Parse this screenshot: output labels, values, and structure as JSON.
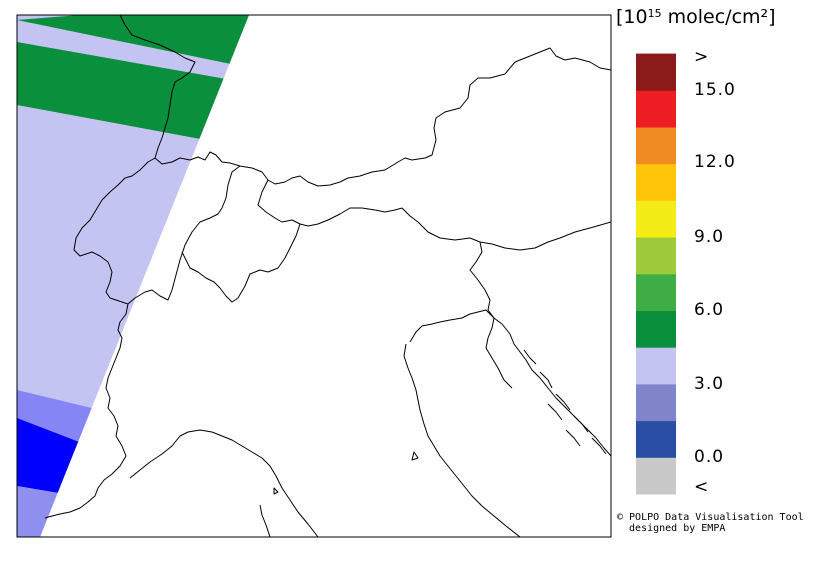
{
  "legend": {
    "unit_prefix": "[10",
    "unit_exponent": "15",
    "unit_suffix": " molec/cm²]",
    "tick_labels": [
      ">",
      "15.0",
      "12.0",
      "9.0",
      "6.0",
      "3.0",
      "0.0",
      "<"
    ],
    "bins": [
      {
        "label": "<",
        "color": "#c8c8c8"
      },
      {
        "label": "0.0-1.5",
        "color": "#2a4ea4"
      },
      {
        "label": "1.5-3.0",
        "color": "#7f85c8"
      },
      {
        "label": "3.0-4.5",
        "color": "#c4c4f2"
      },
      {
        "label": "4.5-6.0",
        "color": "#0a8f3c"
      },
      {
        "label": "6.0-7.5",
        "color": "#3fad46"
      },
      {
        "label": "7.5-9.0",
        "color": "#9cca3a"
      },
      {
        "label": "9.0-10.5",
        "color": "#f3ec16"
      },
      {
        "label": "10.5-12.0",
        "color": "#fec50a"
      },
      {
        "label": "12.0-13.5",
        "color": "#f08b23"
      },
      {
        "label": "13.5-15.0",
        "color": "#ee1d23"
      },
      {
        "label": ">",
        "color": "#8b1a1a"
      }
    ]
  },
  "credit": {
    "line1": "© POLPO Data Visualisation Tool",
    "line2": "  designed by EMPA"
  },
  "map": {
    "swath_colors": {
      "lavender": "#c4c4f2",
      "green": "#0a8f3c",
      "medium_blue": "#8585f5",
      "blue": "#0000ff",
      "light_slate": "#8f8ff0"
    },
    "border_color": "#000000"
  }
}
